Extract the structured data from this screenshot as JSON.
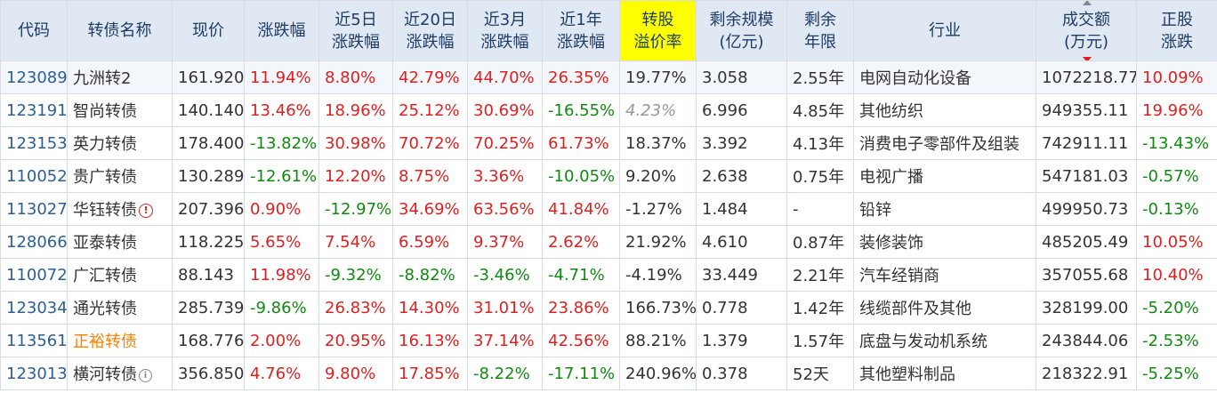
{
  "headers": {
    "code": "代码",
    "name": "转债名称",
    "price": "现价",
    "change": "涨跌幅",
    "d5_l1": "近5日",
    "d5_l2": "涨跌幅",
    "d20_l1": "近20日",
    "d20_l2": "涨跌幅",
    "m3_l1": "近3月",
    "m3_l2": "涨跌幅",
    "y1_l1": "近1年",
    "y1_l2": "涨跌幅",
    "prem_l1": "转股",
    "prem_l2": "溢价率",
    "scale_l1": "剩余规模",
    "scale_l2": "(亿元)",
    "term_l1": "剩余",
    "term_l2": "年限",
    "industry": "行业",
    "volume_l1": "成交额",
    "volume_l2": "(万元)",
    "stock_l1": "正股",
    "stock_l2": "涨跌"
  },
  "rows": [
    {
      "code": "123089",
      "name": "九洲转2",
      "price": "161.920",
      "change": "11.94%",
      "d5": "8.80%",
      "d20": "42.79%",
      "m3": "44.70%",
      "y1": "26.35%",
      "prem": "19.77%",
      "scale": "3.058",
      "term": "2.55年",
      "industry": "电网自动化设备",
      "volume": "1072218.77",
      "stock": "10.09%"
    },
    {
      "code": "123191",
      "name": "智尚转债",
      "price": "140.140",
      "change": "13.46%",
      "d5": "18.96%",
      "d20": "25.12%",
      "m3": "30.69%",
      "y1": "-16.55%",
      "prem": "4.23%",
      "scale": "6.996",
      "term": "4.85年",
      "industry": "其他纺织",
      "volume": "949355.11",
      "stock": "19.96%"
    },
    {
      "code": "123153",
      "name": "英力转债",
      "price": "178.400",
      "change": "-13.82%",
      "d5": "30.98%",
      "d20": "70.72%",
      "m3": "70.25%",
      "y1": "61.73%",
      "prem": "18.37%",
      "scale": "3.392",
      "term": "4.13年",
      "industry": "消费电子零部件及组装",
      "volume": "742911.11",
      "stock": "-13.43%"
    },
    {
      "code": "110052",
      "name": "贵广转债",
      "price": "130.289",
      "change": "-12.61%",
      "d5": "12.20%",
      "d20": "8.75%",
      "m3": "3.36%",
      "y1": "-10.05%",
      "prem": "9.20%",
      "scale": "2.638",
      "term": "0.75年",
      "industry": "电视广播",
      "volume": "547181.03",
      "stock": "-0.57%"
    },
    {
      "code": "113027",
      "name": "华钰转债",
      "price": "207.396",
      "change": "0.90%",
      "d5": "-12.97%",
      "d20": "34.69%",
      "m3": "63.56%",
      "y1": "41.84%",
      "prem": "-1.27%",
      "scale": "1.484",
      "term": "-",
      "industry": "铅锌",
      "volume": "499950.73",
      "stock": "-0.13%"
    },
    {
      "code": "128066",
      "name": "亚泰转债",
      "price": "118.225",
      "change": "5.65%",
      "d5": "7.54%",
      "d20": "6.59%",
      "m3": "9.37%",
      "y1": "2.62%",
      "prem": "21.92%",
      "scale": "4.610",
      "term": "0.87年",
      "industry": "装修装饰",
      "volume": "485205.49",
      "stock": "10.05%"
    },
    {
      "code": "110072",
      "name": "广汇转债",
      "price": "88.143",
      "change": "11.98%",
      "d5": "-9.32%",
      "d20": "-8.82%",
      "m3": "-3.46%",
      "y1": "-4.71%",
      "prem": "-4.19%",
      "scale": "33.449",
      "term": "2.21年",
      "industry": "汽车经销商",
      "volume": "357055.68",
      "stock": "10.40%"
    },
    {
      "code": "123034",
      "name": "通光转债",
      "price": "285.739",
      "change": "-9.86%",
      "d5": "26.83%",
      "d20": "14.30%",
      "m3": "31.01%",
      "y1": "23.86%",
      "prem": "166.73%",
      "scale": "0.778",
      "term": "1.42年",
      "industry": "线缆部件及其他",
      "volume": "328199.00",
      "stock": "-5.20%"
    },
    {
      "code": "113561",
      "name": "正裕转债",
      "price": "168.776",
      "change": "2.00%",
      "d5": "20.95%",
      "d20": "16.13%",
      "m3": "37.14%",
      "y1": "42.56%",
      "prem": "88.21%",
      "scale": "1.379",
      "term": "1.57年",
      "industry": "底盘与发动机系统",
      "volume": "243844.06",
      "stock": "-2.53%"
    },
    {
      "code": "123013",
      "name": "横河转债",
      "price": "356.850",
      "change": "4.76%",
      "d5": "9.80%",
      "d20": "17.85%",
      "m3": "-8.22%",
      "y1": "-17.11%",
      "prem": "240.96%",
      "scale": "0.378",
      "term": "52天",
      "industry": "其他塑料制品",
      "volume": "218322.91",
      "stock": "-5.25%"
    }
  ],
  "icons": {
    "warning": "warning-circle-icon",
    "info": "info-circle-icon",
    "sort": "sort-arrows-icon"
  },
  "colors": {
    "up": "#e02020",
    "down": "#108a10",
    "code": "#2d5e96",
    "header_bg": "#dfe8f3",
    "highlight": "#ffff00",
    "name_orange": "#ff8000"
  }
}
